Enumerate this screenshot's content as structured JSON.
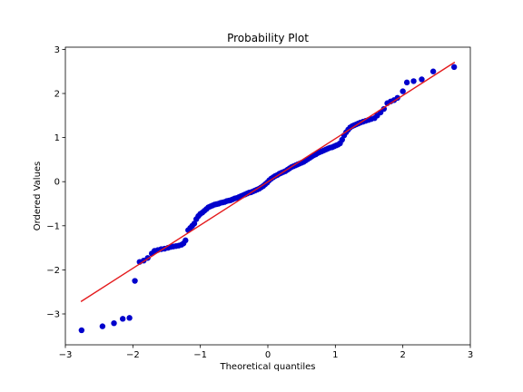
{
  "chart_data": {
    "type": "scatter",
    "title": "Probability Plot",
    "xlabel": "Theoretical quantiles",
    "ylabel": "Ordered Values",
    "xlim": [
      -3.0,
      3.0
    ],
    "ylim": [
      -3.7,
      3.05
    ],
    "xticks": [
      "−3",
      "−2",
      "−1",
      "0",
      "1",
      "2",
      "3"
    ],
    "xtick_values": [
      -3,
      -2,
      -1,
      0,
      1,
      2,
      3
    ],
    "yticks": [
      "−3",
      "−2",
      "−1",
      "0",
      "1",
      "2",
      "3"
    ],
    "ytick_values": [
      -3,
      -2,
      -1,
      0,
      1,
      2,
      3
    ],
    "grid": false,
    "marker_color": "#0000cc",
    "line_color": "#e41a1c",
    "fit_line": {
      "x": [
        -2.77,
        2.77
      ],
      "y": [
        -2.72,
        2.71
      ]
    },
    "points": [
      [
        -2.76,
        -3.37
      ],
      [
        -2.45,
        -3.28
      ],
      [
        -2.28,
        -3.21
      ],
      [
        -2.15,
        -3.11
      ],
      [
        -2.05,
        -3.09
      ],
      [
        -1.97,
        -2.25
      ],
      [
        -1.9,
        -1.82
      ],
      [
        -1.84,
        -1.79
      ],
      [
        -1.78,
        -1.73
      ],
      [
        -1.72,
        -1.63
      ],
      [
        -1.68,
        -1.57
      ],
      [
        -1.63,
        -1.55
      ],
      [
        -1.58,
        -1.53
      ],
      [
        -1.53,
        -1.52
      ],
      [
        -1.48,
        -1.5
      ],
      [
        -1.44,
        -1.48
      ],
      [
        -1.4,
        -1.47
      ],
      [
        -1.36,
        -1.46
      ],
      [
        -1.32,
        -1.45
      ],
      [
        -1.28,
        -1.43
      ],
      [
        -1.25,
        -1.4
      ],
      [
        -1.22,
        -1.33
      ],
      [
        -1.18,
        -1.1
      ],
      [
        -1.15,
        -1.05
      ],
      [
        -1.12,
        -1.0
      ],
      [
        -1.09,
        -0.95
      ],
      [
        -1.06,
        -0.85
      ],
      [
        -1.03,
        -0.78
      ],
      [
        -1.0,
        -0.73
      ],
      [
        -0.97,
        -0.7
      ],
      [
        -0.94,
        -0.66
      ],
      [
        -0.91,
        -0.62
      ],
      [
        -0.88,
        -0.58
      ],
      [
        -0.85,
        -0.56
      ],
      [
        -0.82,
        -0.54
      ],
      [
        -0.79,
        -0.52
      ],
      [
        -0.76,
        -0.51
      ],
      [
        -0.73,
        -0.5
      ],
      [
        -0.7,
        -0.48
      ],
      [
        -0.67,
        -0.47
      ],
      [
        -0.64,
        -0.46
      ],
      [
        -0.61,
        -0.44
      ],
      [
        -0.58,
        -0.43
      ],
      [
        -0.55,
        -0.42
      ],
      [
        -0.52,
        -0.4
      ],
      [
        -0.49,
        -0.38
      ],
      [
        -0.46,
        -0.37
      ],
      [
        -0.43,
        -0.35
      ],
      [
        -0.4,
        -0.33
      ],
      [
        -0.37,
        -0.31
      ],
      [
        -0.34,
        -0.29
      ],
      [
        -0.31,
        -0.27
      ],
      [
        -0.28,
        -0.25
      ],
      [
        -0.25,
        -0.24
      ],
      [
        -0.22,
        -0.22
      ],
      [
        -0.19,
        -0.2
      ],
      [
        -0.16,
        -0.18
      ],
      [
        -0.13,
        -0.16
      ],
      [
        -0.1,
        -0.13
      ],
      [
        -0.07,
        -0.1
      ],
      [
        -0.04,
        -0.06
      ],
      [
        -0.01,
        -0.02
      ],
      [
        0.02,
        0.03
      ],
      [
        0.05,
        0.07
      ],
      [
        0.08,
        0.1
      ],
      [
        0.11,
        0.13
      ],
      [
        0.14,
        0.15
      ],
      [
        0.17,
        0.18
      ],
      [
        0.2,
        0.2
      ],
      [
        0.23,
        0.22
      ],
      [
        0.26,
        0.24
      ],
      [
        0.29,
        0.27
      ],
      [
        0.32,
        0.3
      ],
      [
        0.35,
        0.33
      ],
      [
        0.38,
        0.35
      ],
      [
        0.41,
        0.37
      ],
      [
        0.44,
        0.39
      ],
      [
        0.47,
        0.41
      ],
      [
        0.5,
        0.43
      ],
      [
        0.53,
        0.45
      ],
      [
        0.56,
        0.48
      ],
      [
        0.59,
        0.51
      ],
      [
        0.62,
        0.54
      ],
      [
        0.65,
        0.57
      ],
      [
        0.68,
        0.6
      ],
      [
        0.71,
        0.62
      ],
      [
        0.74,
        0.65
      ],
      [
        0.77,
        0.67
      ],
      [
        0.8,
        0.69
      ],
      [
        0.83,
        0.71
      ],
      [
        0.86,
        0.73
      ],
      [
        0.89,
        0.75
      ],
      [
        0.92,
        0.77
      ],
      [
        0.95,
        0.78
      ],
      [
        0.98,
        0.8
      ],
      [
        1.01,
        0.82
      ],
      [
        1.04,
        0.84
      ],
      [
        1.07,
        0.87
      ],
      [
        1.1,
        0.95
      ],
      [
        1.13,
        1.05
      ],
      [
        1.16,
        1.12
      ],
      [
        1.19,
        1.18
      ],
      [
        1.22,
        1.23
      ],
      [
        1.25,
        1.26
      ],
      [
        1.28,
        1.28
      ],
      [
        1.31,
        1.3
      ],
      [
        1.34,
        1.32
      ],
      [
        1.37,
        1.34
      ],
      [
        1.41,
        1.36
      ],
      [
        1.45,
        1.38
      ],
      [
        1.49,
        1.4
      ],
      [
        1.53,
        1.42
      ],
      [
        1.58,
        1.44
      ],
      [
        1.62,
        1.5
      ],
      [
        1.67,
        1.57
      ],
      [
        1.72,
        1.65
      ],
      [
        1.77,
        1.78
      ],
      [
        1.82,
        1.82
      ],
      [
        1.87,
        1.85
      ],
      [
        1.92,
        1.9
      ],
      [
        2.0,
        2.05
      ],
      [
        2.06,
        2.25
      ],
      [
        2.16,
        2.28
      ],
      [
        2.28,
        2.32
      ],
      [
        2.45,
        2.5
      ],
      [
        2.76,
        2.6
      ]
    ]
  }
}
